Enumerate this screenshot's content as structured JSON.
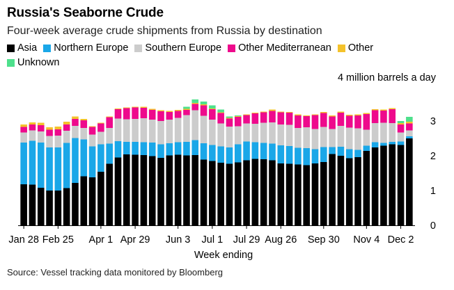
{
  "header": {
    "title": "Russia's Seaborne Crude",
    "subtitle": "Four-week average crude shipments from Russia by destination"
  },
  "footer": {
    "source": "Source: Vessel tracking data monitored by Bloomberg"
  },
  "chart_data": {
    "type": "bar",
    "stacked": true,
    "title": "Russia's Seaborne Crude",
    "subtitle": "Four-week average crude shipments from Russia by destination",
    "unit_label": "4 million barrels a day",
    "xlabel": "Week ending",
    "ylabel": "",
    "ylim": [
      0,
      4
    ],
    "yticks": [
      0,
      1,
      2,
      3
    ],
    "y_axis_side": "right",
    "grid": false,
    "legend_position": "top",
    "x_ticks": [
      {
        "index": 0,
        "label": "Jan 28"
      },
      {
        "index": 4,
        "label": "Feb 25"
      },
      {
        "index": 9,
        "label": "Apr 1"
      },
      {
        "index": 13,
        "label": "Apr 29"
      },
      {
        "index": 18,
        "label": "Jun 3"
      },
      {
        "index": 22,
        "label": "Jul 1"
      },
      {
        "index": 26,
        "label": "Jul 29"
      },
      {
        "index": 30,
        "label": "Aug 26"
      },
      {
        "index": 35,
        "label": "Sep 30"
      },
      {
        "index": 40,
        "label": "Nov 4"
      },
      {
        "index": 44,
        "label": "Dec 2"
      }
    ],
    "categories": [
      "Jan 28",
      "Feb 4",
      "Feb 11",
      "Feb 18",
      "Feb 25",
      "Mar 4",
      "Mar 11",
      "Mar 18",
      "Mar 25",
      "Apr 1",
      "Apr 8",
      "Apr 15",
      "Apr 22",
      "Apr 29",
      "May 6",
      "May 13",
      "May 20",
      "May 27",
      "Jun 3",
      "Jun 10",
      "Jun 17",
      "Jun 24",
      "Jul 1",
      "Jul 8",
      "Jul 15",
      "Jul 22",
      "Jul 29",
      "Aug 5",
      "Aug 12",
      "Aug 19",
      "Aug 26",
      "Sep 2",
      "Sep 9",
      "Sep 16",
      "Sep 23",
      "Sep 30",
      "Oct 7",
      "Oct 14",
      "Oct 21",
      "Oct 28",
      "Nov 4",
      "Nov 11",
      "Nov 18",
      "Nov 25",
      "Dec 2",
      "Dec 9"
    ],
    "series": [
      {
        "name": "Asia",
        "color": "#000000",
        "values": [
          1.18,
          1.17,
          1.08,
          1.0,
          1.0,
          1.07,
          1.22,
          1.41,
          1.38,
          1.54,
          1.77,
          1.95,
          2.04,
          2.03,
          2.02,
          1.99,
          1.94,
          2.01,
          2.03,
          2.01,
          2.02,
          1.89,
          1.85,
          1.8,
          1.77,
          1.81,
          1.87,
          1.91,
          1.9,
          1.87,
          1.78,
          1.77,
          1.75,
          1.73,
          1.78,
          1.82,
          2.05,
          2.0,
          1.93,
          1.96,
          2.14,
          2.24,
          2.29,
          2.33,
          2.31,
          2.5
        ]
      },
      {
        "name": "Northern Europe",
        "color": "#1aa7e8",
        "values": [
          1.2,
          1.26,
          1.3,
          1.24,
          1.24,
          1.3,
          1.29,
          1.06,
          0.89,
          0.79,
          0.58,
          0.47,
          0.36,
          0.37,
          0.37,
          0.39,
          0.39,
          0.35,
          0.36,
          0.39,
          0.43,
          0.47,
          0.46,
          0.47,
          0.47,
          0.52,
          0.54,
          0.48,
          0.47,
          0.48,
          0.52,
          0.51,
          0.48,
          0.49,
          0.41,
          0.43,
          0.2,
          0.26,
          0.26,
          0.21,
          0.15,
          0.15,
          0.08,
          0.07,
          0.1,
          0.06
        ]
      },
      {
        "name": "Southern Europe",
        "color": "#cccccc",
        "values": [
          0.29,
          0.3,
          0.32,
          0.33,
          0.34,
          0.35,
          0.35,
          0.33,
          0.34,
          0.36,
          0.45,
          0.65,
          0.65,
          0.66,
          0.69,
          0.66,
          0.67,
          0.68,
          0.7,
          0.77,
          0.86,
          0.79,
          0.73,
          0.66,
          0.6,
          0.52,
          0.52,
          0.53,
          0.58,
          0.61,
          0.6,
          0.61,
          0.57,
          0.6,
          0.58,
          0.58,
          0.52,
          0.6,
          0.62,
          0.62,
          0.46,
          0.55,
          0.58,
          0.54,
          0.26,
          0.17
        ]
      },
      {
        "name": "Other Mediterranean",
        "color": "#ee0a8c",
        "values": [
          0.16,
          0.17,
          0.18,
          0.18,
          0.18,
          0.18,
          0.2,
          0.22,
          0.22,
          0.24,
          0.31,
          0.27,
          0.32,
          0.33,
          0.3,
          0.28,
          0.28,
          0.22,
          0.2,
          0.15,
          0.18,
          0.3,
          0.3,
          0.3,
          0.23,
          0.27,
          0.24,
          0.3,
          0.3,
          0.33,
          0.35,
          0.35,
          0.36,
          0.32,
          0.4,
          0.4,
          0.36,
          0.38,
          0.34,
          0.37,
          0.45,
          0.37,
          0.35,
          0.4,
          0.23,
          0.2
        ]
      },
      {
        "name": "Other",
        "color": "#f4c22b",
        "values": [
          0.07,
          0.06,
          0.07,
          0.07,
          0.08,
          0.08,
          0.07,
          0.04,
          0.02,
          0.02,
          0.02,
          0.02,
          0.02,
          0.02,
          0.03,
          0.03,
          0.03,
          0.03,
          0.03,
          0.03,
          0.03,
          0.03,
          0.02,
          0.02,
          0.02,
          0.02,
          0.02,
          0.02,
          0.02,
          0.04,
          0.02,
          0.02,
          0.03,
          0.02,
          0.02,
          0.03,
          0.03,
          0.03,
          0.03,
          0.03,
          0.03,
          0.03,
          0.03,
          0.03,
          0.04,
          0.05
        ]
      },
      {
        "name": "Unknown",
        "color": "#4ee08c",
        "values": [
          0,
          0,
          0,
          0,
          0,
          0,
          0,
          0,
          0,
          0,
          0,
          0,
          0,
          0,
          0,
          0,
          0,
          0,
          0,
          0.06,
          0.1,
          0.08,
          0.09,
          0.08,
          0.04,
          0.02,
          0,
          0,
          0,
          0,
          0,
          0,
          0,
          0,
          0,
          0,
          0,
          0,
          0,
          0,
          0,
          0,
          0,
          0,
          0.06,
          0.14
        ]
      }
    ]
  }
}
